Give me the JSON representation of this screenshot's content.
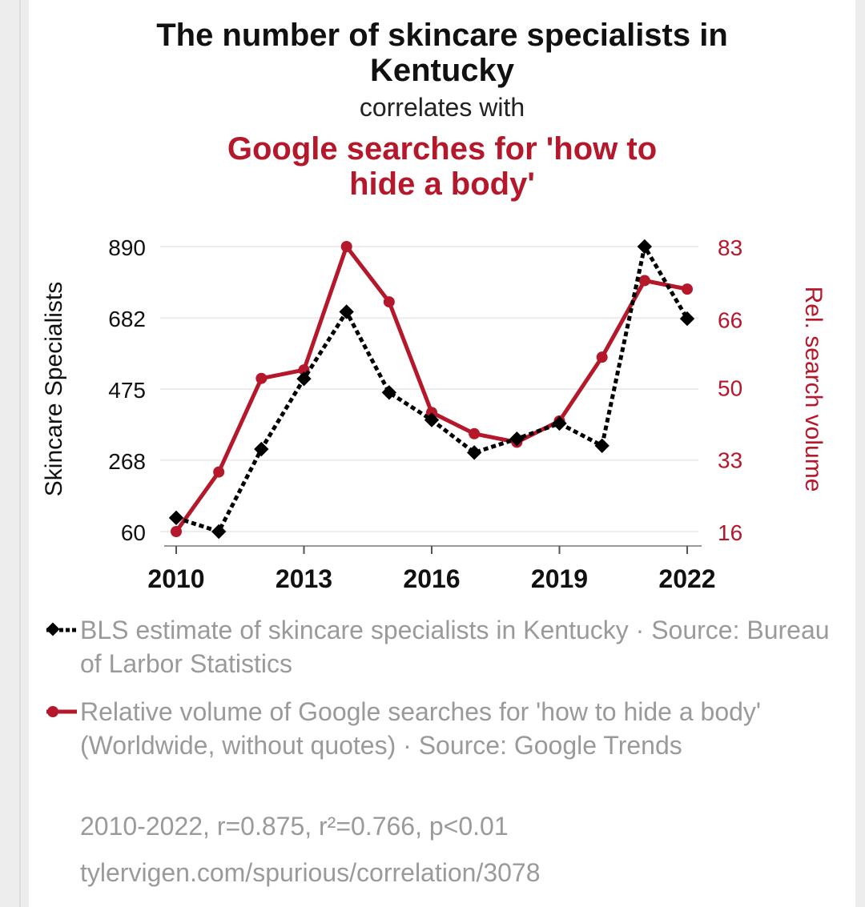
{
  "title": "The number of skincare specialists in Kentucky",
  "connector": "correlates with",
  "subtitle": "Google searches for 'how to hide a body'",
  "colors": {
    "series1": "#000000",
    "series2": "#b5172b",
    "muted": "#9a9a9a"
  },
  "chart_data": {
    "type": "line",
    "x": [
      2010,
      2011,
      2012,
      2013,
      2014,
      2015,
      2016,
      2017,
      2018,
      2019,
      2020,
      2021,
      2022
    ],
    "xticks": [
      "2010",
      "2013",
      "2016",
      "2019",
      "2022"
    ],
    "ylabel_left": "Skincare Specialists",
    "ylabel_right": "Rel. search volume",
    "ylim_left": [
      60,
      890
    ],
    "ylim_right": [
      16,
      83
    ],
    "yticks_left": [
      "890",
      "682",
      "475",
      "268",
      "60"
    ],
    "yticks_right": [
      "83",
      "66",
      "50",
      "33",
      "16"
    ],
    "grid": true,
    "series": [
      {
        "name": "BLS estimate of skincare specialists in Kentucky",
        "axis": "left",
        "style": "dotted-diamond",
        "values": [
          100,
          60,
          300,
          505,
          700,
          465,
          385,
          290,
          330,
          375,
          310,
          890,
          680
        ]
      },
      {
        "name": "Relative volume of Google searches for 'how to hide a body' (Worldwide, without quotes)",
        "axis": "right",
        "style": "solid-circle",
        "values": [
          16,
          30,
          52,
          54,
          83,
          70,
          44,
          39,
          37,
          42,
          57,
          75,
          73
        ]
      }
    ]
  },
  "legend": [
    {
      "text": "BLS estimate of skincare specialists in Kentucky · Source: Bureau of Larbor Statistics"
    },
    {
      "text": "Relative volume of Google searches for 'how to hide a body' (Worldwide, without quotes) · Source: Google Trends"
    }
  ],
  "stats": "2010-2022, r=0.875, r²=0.766, p<0.01",
  "source_url": "tylervigen.com/spurious/correlation/3078"
}
